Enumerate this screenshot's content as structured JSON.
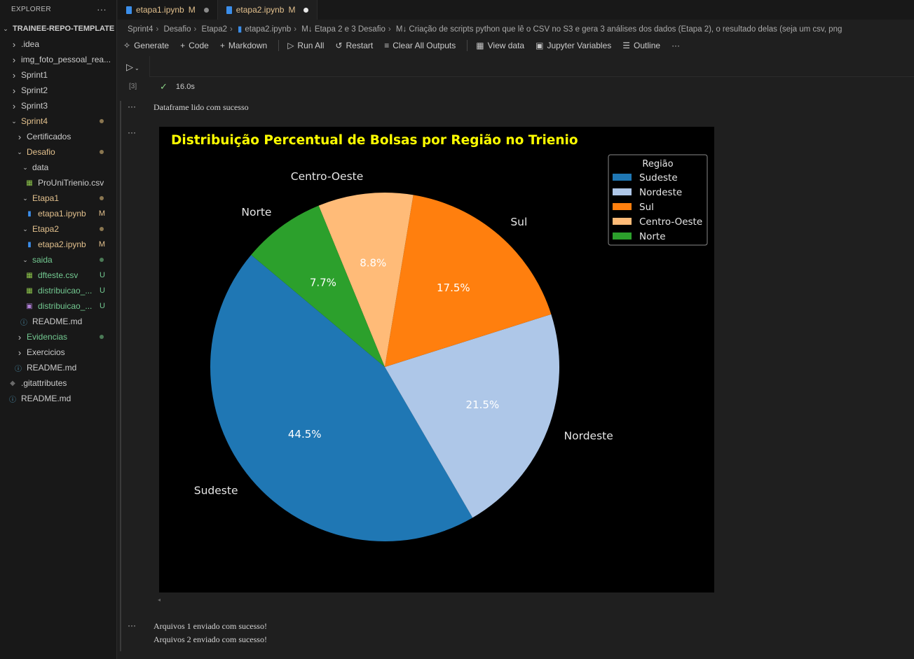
{
  "sidebar": {
    "title": "EXPLORER",
    "more": "···",
    "items": [
      {
        "label": "TRAINEE-REPO-TEMPLATE",
        "indent": 0,
        "chev": "down",
        "style": "root"
      },
      {
        "label": ".idea",
        "indent": 1,
        "chev": "right"
      },
      {
        "label": "img_foto_pessoal_rea...",
        "indent": 1,
        "chev": "right"
      },
      {
        "label": "Sprint1",
        "indent": 1,
        "chev": "right"
      },
      {
        "label": "Sprint2",
        "indent": 1,
        "chev": "right"
      },
      {
        "label": "Sprint3",
        "indent": 1,
        "chev": "right"
      },
      {
        "label": "Sprint4",
        "indent": 1,
        "chev": "down",
        "state": "mod-dot"
      },
      {
        "label": "Certificados",
        "indent": 2,
        "chev": "right"
      },
      {
        "label": "Desafio",
        "indent": 2,
        "chev": "down",
        "state": "mod-dot"
      },
      {
        "label": "data",
        "indent": 3,
        "chev": "down"
      },
      {
        "label": "ProUniTrienio.csv",
        "indent": 4,
        "icon": "csv-icon"
      },
      {
        "label": "Etapa1",
        "indent": 3,
        "chev": "down",
        "state": "mod-dot"
      },
      {
        "label": "etapa1.ipynb",
        "indent": 4,
        "icon": "notebook-icon",
        "state": "mod",
        "badge": "M"
      },
      {
        "label": "Etapa2",
        "indent": 3,
        "chev": "down",
        "state": "mod-dot"
      },
      {
        "label": "etapa2.ipynb",
        "indent": 4,
        "icon": "notebook-icon",
        "state": "mod",
        "badge": "M"
      },
      {
        "label": "saida",
        "indent": 3,
        "chev": "down",
        "state": "unt-dot"
      },
      {
        "label": "dfteste.csv",
        "indent": 4,
        "icon": "csv-icon",
        "state": "unt",
        "badge": "U"
      },
      {
        "label": "distribuicao_...",
        "indent": 4,
        "icon": "csv-icon",
        "state": "unt",
        "badge": "U"
      },
      {
        "label": "distribuicao_...",
        "indent": 4,
        "icon": "image-icon",
        "state": "unt",
        "badge": "U"
      },
      {
        "label": "README.md",
        "indent": 3,
        "icon": "info-icon"
      },
      {
        "label": "Evidencias",
        "indent": 2,
        "chev": "right",
        "state": "unt-dot"
      },
      {
        "label": "Exercicios",
        "indent": 2,
        "chev": "right"
      },
      {
        "label": "README.md",
        "indent": 2,
        "icon": "info-icon"
      },
      {
        "label": ".gitattributes",
        "indent": 1,
        "icon": "git-icon"
      },
      {
        "label": "README.md",
        "indent": 1,
        "icon": "info-icon"
      }
    ]
  },
  "tabs": [
    {
      "label": "etapa1.ipynb",
      "badge": "M",
      "active": false
    },
    {
      "label": "etapa2.ipynb",
      "badge": "M",
      "active": true
    }
  ],
  "breadcrumb": [
    "Sprint4",
    "Desafio",
    "Etapa2",
    "etapa2.ipynb",
    "M↓ Etapa 2 e 3 Desafio",
    "M↓ Criação de scripts python que lê o CSV no S3 e gera 3 análises dos dados (Etapa 2), o resultado delas (seja um csv, png"
  ],
  "toolbar": {
    "generate": "Generate",
    "code": "Code",
    "markdown": "Markdown",
    "run_all": "Run All",
    "restart": "Restart",
    "clear_outputs": "Clear All Outputs",
    "view_data": "View data",
    "variables": "Jupyter Variables",
    "outline": "Outline",
    "more": "···"
  },
  "cell": {
    "exec_count": "[3]",
    "duration": "16.0s",
    "out_dots": "···",
    "output_1": "Dataframe lido com sucesso",
    "output_2a": "Arquivos 1 enviado com sucesso!",
    "output_2b": "Arquivos 2 enviado com sucesso!"
  },
  "colors": {
    "Sudeste": "#1f77b4",
    "Nordeste": "#aec7e8",
    "Sul": "#ff7f0e",
    "Centro-Oeste": "#ffbb78",
    "Norte": "#2ca02c",
    "title": "#ffff00"
  },
  "chart_data": {
    "type": "pie",
    "title": "Distribuição Percentual de Bolsas por Região no Trienio",
    "legend_title": "Região",
    "legend_position": "top-right",
    "categories": [
      "Sudeste",
      "Nordeste",
      "Sul",
      "Centro-Oeste",
      "Norte"
    ],
    "values": [
      44.5,
      21.5,
      17.5,
      8.8,
      7.7
    ],
    "value_labels": [
      "44.5%",
      "21.5%",
      "17.5%",
      "8.8%",
      "7.7%"
    ],
    "start_angle": 140
  }
}
